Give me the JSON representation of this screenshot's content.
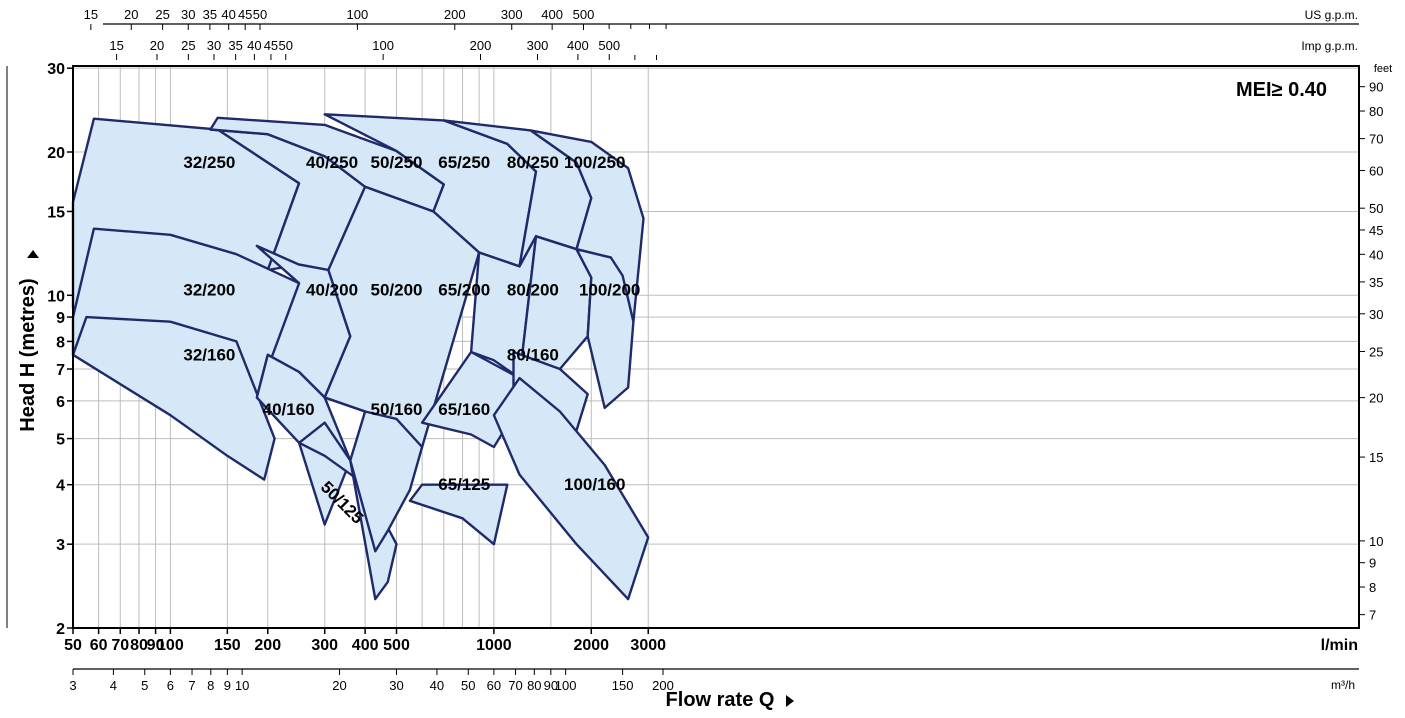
{
  "chart_data": {
    "type": "area",
    "title": "",
    "badge": "MEI≥ 0.40",
    "xlabel": "Flow rate Q",
    "ylabel": "Head H (metres)",
    "x_scale": "log",
    "y_scale": "log",
    "xlim": [
      50,
      3500
    ],
    "ylim": [
      2,
      30
    ],
    "grid": true,
    "x_unit": "l/min",
    "x_ticks": [
      50,
      60,
      70,
      80,
      90,
      100,
      150,
      200,
      300,
      400,
      500,
      1000,
      2000,
      3000
    ],
    "y_ticks": [
      2,
      3,
      4,
      5,
      6,
      7,
      8,
      9,
      10,
      15,
      20,
      30
    ],
    "axis_m3h": {
      "unit": "m³/h",
      "ticks": [
        3,
        4,
        5,
        6,
        7,
        8,
        9,
        10,
        20,
        30,
        40,
        50,
        60,
        70,
        80,
        90,
        100,
        150,
        200
      ]
    },
    "axis_us_gpm": {
      "unit": "US g.p.m.",
      "ticks": [
        15,
        20,
        25,
        30,
        35,
        40,
        45,
        50,
        100,
        200,
        300,
        400,
        500
      ]
    },
    "axis_imp_gpm": {
      "unit": "Imp g.p.m.",
      "ticks": [
        15,
        20,
        25,
        30,
        35,
        40,
        45,
        50,
        100,
        200,
        300,
        400,
        500
      ]
    },
    "axis_feet": {
      "unit": "feet",
      "ticks": [
        7,
        8,
        9,
        10,
        15,
        20,
        25,
        30,
        35,
        40,
        45,
        50,
        60,
        70,
        80,
        90
      ]
    },
    "series": [
      {
        "name": "32/250",
        "label_at": [
          132,
          18.5
        ],
        "polygon": [
          [
            50,
            15.7
          ],
          [
            58,
            23.5
          ],
          [
            140,
            22.3
          ],
          [
            250,
            17.2
          ],
          [
            200,
            11.3
          ],
          [
            182,
            10.9
          ],
          [
            120,
            11.8
          ],
          [
            50,
            9.4
          ]
        ]
      },
      {
        "name": "40/250",
        "label_at": [
          316,
          18.5
        ],
        "polygon": [
          [
            133,
            22.3
          ],
          [
            200,
            21.8
          ],
          [
            300,
            19.6
          ],
          [
            400,
            16.9
          ],
          [
            308,
            11.3
          ],
          [
            250,
            11.6
          ],
          [
            200,
            11.3
          ],
          [
            250,
            17.2
          ],
          [
            140,
            22.3
          ]
        ]
      },
      {
        "name": "50/250",
        "label_at": [
          500,
          18.5
        ],
        "polygon": [
          [
            140,
            23.6
          ],
          [
            300,
            22.8
          ],
          [
            500,
            20.1
          ],
          [
            700,
            17.1
          ],
          [
            650,
            15.0
          ],
          [
            400,
            16.9
          ],
          [
            300,
            19.6
          ],
          [
            200,
            21.8
          ],
          [
            133,
            22.3
          ]
        ]
      },
      {
        "name": "65/250",
        "label_at": [
          810,
          18.5
        ],
        "polygon": [
          [
            300,
            24.0
          ],
          [
            700,
            23.3
          ],
          [
            1100,
            20.8
          ],
          [
            1350,
            18.2
          ],
          [
            1200,
            11.5
          ],
          [
            900,
            12.3
          ],
          [
            650,
            15.0
          ],
          [
            700,
            17.1
          ],
          [
            500,
            20.1
          ]
        ]
      },
      {
        "name": "80/250",
        "label_at": [
          1320,
          18.5
        ],
        "polygon": [
          [
            700,
            23.3
          ],
          [
            1300,
            22.2
          ],
          [
            1800,
            19.0
          ],
          [
            2000,
            16.0
          ],
          [
            1800,
            12.5
          ],
          [
            1350,
            13.3
          ],
          [
            1200,
            11.5
          ],
          [
            1350,
            18.2
          ],
          [
            1100,
            20.8
          ]
        ]
      },
      {
        "name": "100/250",
        "label_at": [
          2050,
          18.5
        ],
        "polygon": [
          [
            1300,
            22.2
          ],
          [
            2000,
            21.0
          ],
          [
            2600,
            18.5
          ],
          [
            2900,
            14.5
          ],
          [
            2700,
            8.8
          ],
          [
            2300,
            12.0
          ],
          [
            1800,
            12.5
          ],
          [
            2000,
            16.0
          ],
          [
            1800,
            19.0
          ]
        ]
      },
      {
        "name": "32/200",
        "label_at": [
          132,
          10.0
        ],
        "polygon": [
          [
            50,
            9.0
          ],
          [
            58,
            13.8
          ],
          [
            100,
            13.4
          ],
          [
            160,
            12.2
          ],
          [
            250,
            10.6
          ],
          [
            200,
            6.0
          ],
          [
            180,
            6.1
          ],
          [
            120,
            6.6
          ],
          [
            50,
            7.5
          ]
        ]
      },
      {
        "name": "40/200",
        "label_at": [
          316,
          10.0
        ],
        "polygon": [
          [
            185,
            12.7
          ],
          [
            250,
            11.6
          ],
          [
            308,
            11.3
          ],
          [
            360,
            8.2
          ],
          [
            300,
            6.1
          ],
          [
            250,
            6.9
          ],
          [
            200,
            7.5
          ],
          [
            185,
            6.1
          ],
          [
            250,
            10.6
          ]
        ]
      },
      {
        "name": "50/200",
        "label_at": [
          500,
          10.0
        ],
        "polygon": [
          [
            400,
            16.9
          ],
          [
            650,
            15.0
          ],
          [
            900,
            12.3
          ],
          [
            600,
            4.8
          ],
          [
            500,
            3.8
          ],
          [
            400,
            5.7
          ],
          [
            300,
            6.1
          ],
          [
            360,
            8.2
          ],
          [
            308,
            11.3
          ]
        ]
      },
      {
        "name": "65/200",
        "label_at": [
          810,
          10.0
        ],
        "polygon": [
          [
            900,
            12.3
          ],
          [
            1200,
            11.5
          ],
          [
            1350,
            13.3
          ],
          [
            1200,
            6.7
          ],
          [
            1000,
            7.3
          ],
          [
            850,
            7.6
          ],
          [
            900,
            12.3
          ]
        ]
      },
      {
        "name": "80/200",
        "label_at": [
          1320,
          10.0
        ],
        "polygon": [
          [
            1350,
            13.3
          ],
          [
            1800,
            12.5
          ],
          [
            2000,
            10.9
          ],
          [
            1950,
            8.2
          ],
          [
            1600,
            7.0
          ],
          [
            1200,
            6.7
          ],
          [
            1350,
            13.3
          ]
        ]
      },
      {
        "name": "100/200",
        "label_at": [
          2280,
          10.0
        ],
        "polygon": [
          [
            1800,
            12.5
          ],
          [
            2300,
            12.0
          ],
          [
            2500,
            11.0
          ],
          [
            2700,
            8.8
          ],
          [
            2600,
            6.4
          ],
          [
            2200,
            5.8
          ],
          [
            1950,
            8.2
          ],
          [
            2000,
            10.9
          ]
        ]
      },
      {
        "name": "32/160",
        "label_at": [
          132,
          7.3
        ],
        "polygon": [
          [
            50,
            7.5
          ],
          [
            55,
            9.0
          ],
          [
            100,
            8.8
          ],
          [
            160,
            8.0
          ],
          [
            210,
            5.0
          ],
          [
            195,
            4.1
          ],
          [
            150,
            4.6
          ],
          [
            100,
            5.6
          ],
          [
            50,
            7.5
          ]
        ]
      },
      {
        "name": "40/160",
        "label_at": [
          232,
          5.6
        ],
        "polygon": [
          [
            185,
            6.1
          ],
          [
            200,
            7.5
          ],
          [
            250,
            6.9
          ],
          [
            300,
            6.1
          ],
          [
            360,
            4.5
          ],
          [
            300,
            3.3
          ],
          [
            250,
            4.9
          ],
          [
            185,
            6.1
          ]
        ]
      },
      {
        "name": "50/125",
        "label_at": [
          330,
          3.6
        ],
        "label_rotate": 45,
        "polygon": [
          [
            250,
            4.9
          ],
          [
            300,
            4.6
          ],
          [
            400,
            4.0
          ],
          [
            500,
            3.0
          ],
          [
            470,
            2.5
          ],
          [
            430,
            2.3
          ],
          [
            360,
            4.5
          ],
          [
            300,
            5.4
          ]
        ]
      },
      {
        "name": "50/160",
        "label_at": [
          500,
          5.6
        ],
        "polygon": [
          [
            300,
            6.1
          ],
          [
            400,
            5.7
          ],
          [
            500,
            5.5
          ],
          [
            600,
            4.8
          ],
          [
            550,
            3.9
          ],
          [
            470,
            3.2
          ],
          [
            430,
            2.9
          ],
          [
            360,
            4.5
          ],
          [
            400,
            5.7
          ]
        ]
      },
      {
        "name": "65/160",
        "label_at": [
          810,
          5.6
        ],
        "polygon": [
          [
            600,
            5.4
          ],
          [
            850,
            5.1
          ],
          [
            1000,
            4.8
          ],
          [
            1150,
            5.6
          ],
          [
            1200,
            6.7
          ],
          [
            850,
            7.6
          ],
          [
            600,
            5.4
          ]
        ]
      },
      {
        "name": "65/125",
        "label_at": [
          810,
          3.9
        ],
        "polygon": [
          [
            550,
            3.7
          ],
          [
            600,
            4.0
          ],
          [
            900,
            4.0
          ],
          [
            1100,
            4.0
          ],
          [
            1000,
            3.0
          ],
          [
            800,
            3.4
          ],
          [
            550,
            3.7
          ]
        ]
      },
      {
        "name": "80/160",
        "label_at": [
          1320,
          7.3
        ],
        "polygon": [
          [
            1150,
            7.6
          ],
          [
            1600,
            7.0
          ],
          [
            1950,
            6.2
          ],
          [
            1800,
            5.2
          ],
          [
            1500,
            5.5
          ],
          [
            1150,
            5.6
          ],
          [
            1150,
            7.6
          ]
        ]
      },
      {
        "name": "100/160",
        "label_at": [
          2050,
          3.9
        ],
        "polygon": [
          [
            1000,
            5.6
          ],
          [
            1200,
            6.7
          ],
          [
            1600,
            5.7
          ],
          [
            2200,
            4.4
          ],
          [
            3000,
            3.1
          ],
          [
            2600,
            2.3
          ],
          [
            1800,
            3.0
          ],
          [
            1200,
            4.2
          ],
          [
            1000,
            5.6
          ]
        ]
      }
    ]
  }
}
